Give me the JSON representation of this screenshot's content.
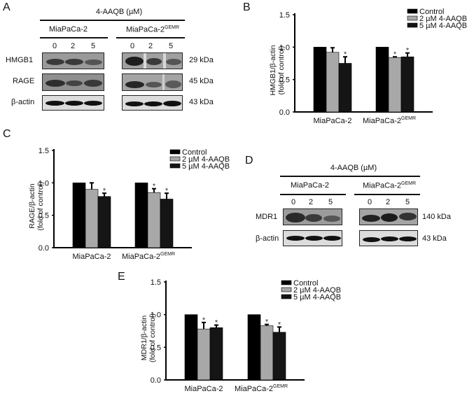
{
  "panels": {
    "A": {
      "letter": "A",
      "treatment_label": "4-AAQB (µM)",
      "cell_lines": [
        "MiaPaCa-2",
        "MiaPaCa-2"
      ],
      "cell_line_sup": [
        "",
        "GEMR"
      ],
      "doses": [
        "0",
        "2",
        "5"
      ],
      "rows": [
        {
          "label": "HMGB1",
          "size": "29 kDa"
        },
        {
          "label": "RAGE",
          "size": "45 kDa"
        },
        {
          "label": "β-actin",
          "size": "43 kDa"
        }
      ]
    },
    "D": {
      "letter": "D",
      "treatment_label": "4-AAQB (µM)",
      "cell_lines": [
        "MiaPaCa-2",
        "MiaPaCa-2"
      ],
      "cell_line_sup": [
        "",
        "GEMR"
      ],
      "doses": [
        "0",
        "2",
        "5"
      ],
      "rows": [
        {
          "label": "MDR1",
          "size": "140 kDa"
        },
        {
          "label": "β-actin",
          "size": "43 kDa"
        }
      ]
    },
    "B": {
      "letter": "B"
    },
    "C": {
      "letter": "C"
    },
    "E": {
      "letter": "E"
    }
  },
  "legend": {
    "items": [
      "Control",
      "2 µM 4-AAQB",
      "5 µM 4-AAQB"
    ]
  },
  "colors": {
    "control": "#000000",
    "dose2": "#a8a8a8",
    "dose5": "#151515"
  },
  "chart_data": [
    {
      "panel": "B",
      "type": "bar",
      "title": "",
      "categories": [
        "MiaPaCa-2",
        "MiaPaCa-2 GEMR"
      ],
      "ylabel": "HMGB1/β-actin (fold of control)",
      "xlabel": "",
      "ylim": [
        0,
        1.5
      ],
      "yticks": [
        "0.0",
        "0.5",
        "1.0",
        "1.5"
      ],
      "grid": false,
      "legend_position": "top-right",
      "series": [
        {
          "name": "Control",
          "values": [
            1.0,
            1.0
          ],
          "errors": [
            0,
            0
          ],
          "sig": [
            false,
            false
          ]
        },
        {
          "name": "2 µM 4-AAQB",
          "values": [
            0.92,
            0.84
          ],
          "errors": [
            0.07,
            0.01
          ],
          "sig": [
            false,
            true
          ]
        },
        {
          "name": "5 µM 4-AAQB",
          "values": [
            0.75,
            0.85
          ],
          "errors": [
            0.1,
            0.06
          ],
          "sig": [
            true,
            true
          ]
        }
      ]
    },
    {
      "panel": "C",
      "type": "bar",
      "title": "",
      "categories": [
        "MiaPaCa-2",
        "MiaPaCa-2 GEMR"
      ],
      "ylabel": "RAGE/β-actin (fold of control)",
      "xlabel": "",
      "ylim": [
        0,
        1.5
      ],
      "yticks": [
        "0.0",
        "0.5",
        "1.0",
        "1.5"
      ],
      "grid": false,
      "legend_position": "top-right",
      "series": [
        {
          "name": "Control",
          "values": [
            1.0,
            1.0
          ],
          "errors": [
            0,
            0
          ],
          "sig": [
            false,
            false
          ]
        },
        {
          "name": "2 µM 4-AAQB",
          "values": [
            0.9,
            0.85
          ],
          "errors": [
            0.1,
            0.06
          ],
          "sig": [
            false,
            true
          ]
        },
        {
          "name": "5 µM 4-AAQB",
          "values": [
            0.79,
            0.75
          ],
          "errors": [
            0.05,
            0.09
          ],
          "sig": [
            true,
            true
          ]
        }
      ]
    },
    {
      "panel": "E",
      "type": "bar",
      "title": "",
      "categories": [
        "MiaPaCa-2",
        "MiaPaCa-2 GEMR"
      ],
      "ylabel": "MDR1/β-actin (fold of control)",
      "xlabel": "",
      "ylim": [
        0,
        1.5
      ],
      "yticks": [
        "0.0",
        "0.5",
        "1.0",
        "1.5"
      ],
      "grid": false,
      "legend_position": "top-right",
      "series": [
        {
          "name": "Control",
          "values": [
            1.0,
            1.0
          ],
          "errors": [
            0,
            0
          ],
          "sig": [
            false,
            false
          ]
        },
        {
          "name": "2 µM 4-AAQB",
          "values": [
            0.78,
            0.83
          ],
          "errors": [
            0.1,
            0.02
          ],
          "sig": [
            true,
            true
          ]
        },
        {
          "name": "5 µM 4-AAQB",
          "values": [
            0.8,
            0.73
          ],
          "errors": [
            0.04,
            0.08
          ],
          "sig": [
            true,
            true
          ]
        }
      ]
    }
  ]
}
